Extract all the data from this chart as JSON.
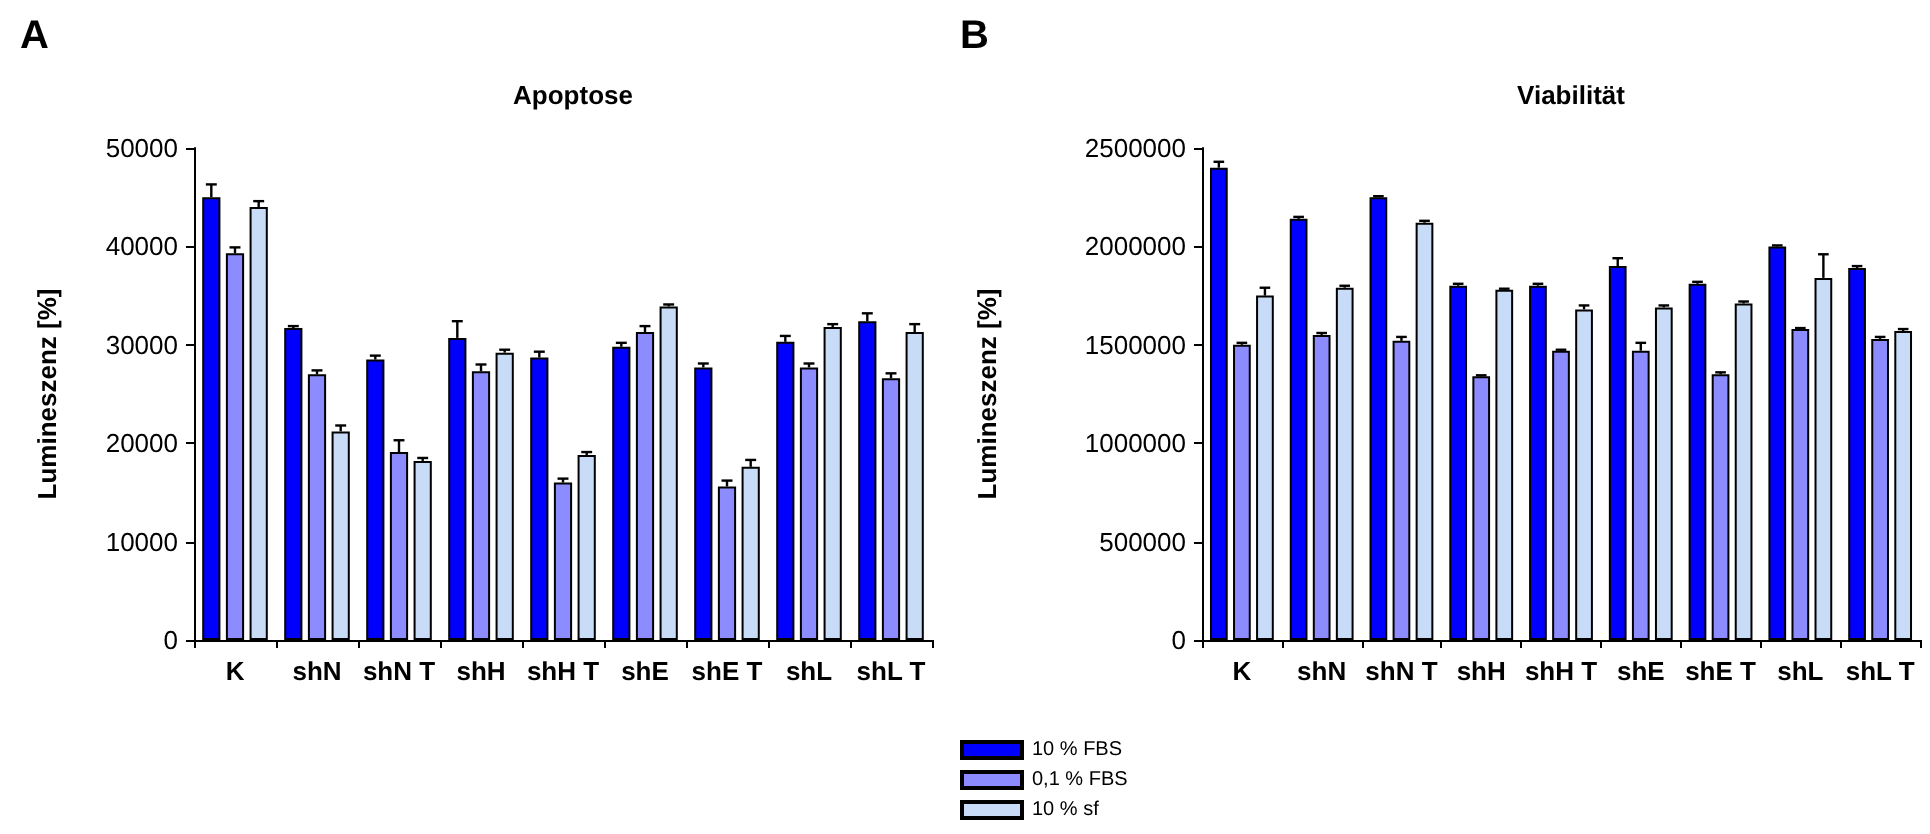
{
  "chart_data": [
    {
      "type": "bar",
      "title": "Apoptose",
      "ylabel": "Lumineszenz [%]",
      "annotations": [
        "A"
      ],
      "categories": [
        "K",
        "shN",
        "shN T",
        "shH",
        "shH T",
        "shE",
        "shE T",
        "shL",
        "shL T"
      ],
      "ylim": [
        0,
        50000
      ],
      "yticks": [
        0,
        10000,
        20000,
        30000,
        40000,
        50000
      ],
      "grid": false,
      "legend": false,
      "series": [
        {
          "color": "#0000ff",
          "values": [
            45000,
            31700,
            28500,
            30700,
            28700,
            29800,
            27700,
            30300,
            32400
          ],
          "errors": [
            1300,
            200,
            400,
            1700,
            600,
            400,
            400,
            600,
            800
          ]
        },
        {
          "color": "#8c8cff",
          "values": [
            39300,
            27000,
            19100,
            27300,
            16000,
            31300,
            15600,
            27700,
            26600
          ],
          "errors": [
            600,
            400,
            1200,
            700,
            400,
            600,
            600,
            400,
            500
          ]
        },
        {
          "color": "#c8dcf8",
          "values": [
            44000,
            21200,
            18200,
            29200,
            18800,
            33900,
            17600,
            31800,
            31300
          ],
          "errors": [
            600,
            600,
            300,
            300,
            300,
            200,
            700,
            300,
            800
          ]
        }
      ]
    },
    {
      "type": "bar",
      "title": "Viabilität",
      "ylabel": "Lumineszenz [%]",
      "annotations": [
        "B"
      ],
      "categories": [
        "K",
        "shN",
        "shN T",
        "shH",
        "shH T",
        "shE",
        "shE T",
        "shL",
        "shL T"
      ],
      "ylim": [
        0,
        2500000
      ],
      "yticks": [
        0,
        500000,
        1000000,
        1500000,
        2000000,
        2500000
      ],
      "grid": false,
      "legend": "bottom left",
      "series": [
        {
          "name": "10 % FBS",
          "color": "#0000ff",
          "values": [
            2400000,
            2140000,
            2250000,
            1800000,
            1800000,
            1900000,
            1810000,
            2000000,
            1890000
          ],
          "errors": [
            30000,
            10000,
            5000,
            10000,
            10000,
            40000,
            10000,
            5000,
            10000
          ]
        },
        {
          "name": "0,1 % FBS",
          "color": "#8c8cff",
          "values": [
            1500000,
            1550000,
            1520000,
            1340000,
            1470000,
            1470000,
            1350000,
            1580000,
            1530000
          ],
          "errors": [
            10000,
            10000,
            20000,
            5000,
            5000,
            40000,
            10000,
            5000,
            10000
          ]
        },
        {
          "name": "10 % sf",
          "color": "#c8dcf8",
          "values": [
            1750000,
            1790000,
            2120000,
            1780000,
            1680000,
            1690000,
            1710000,
            1840000,
            1570000
          ],
          "errors": [
            40000,
            10000,
            10000,
            5000,
            20000,
            10000,
            10000,
            120000,
            10000
          ]
        }
      ]
    }
  ]
}
